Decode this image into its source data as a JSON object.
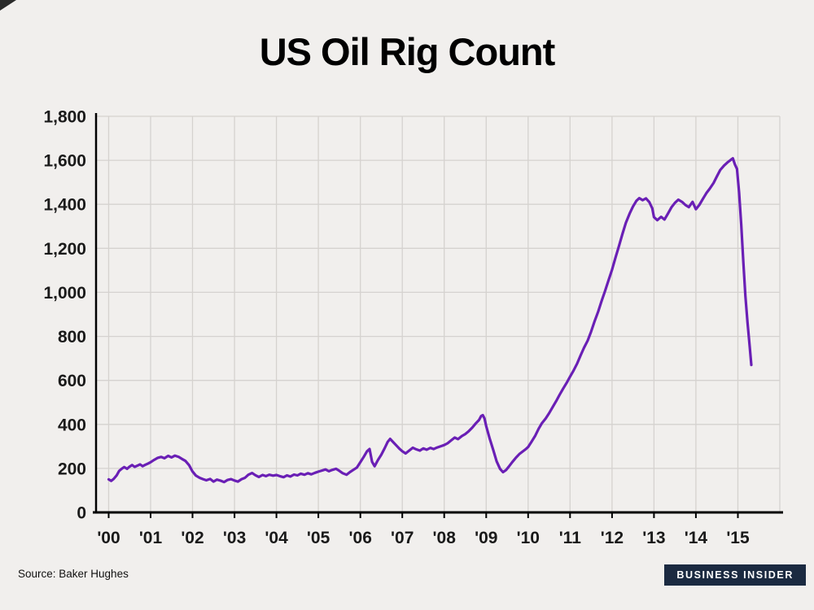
{
  "title": "US Oil Rig Count",
  "footer": {
    "source": "Source: Baker Hughes",
    "badge": "BUSINESS INSIDER"
  },
  "colors": {
    "background": "#f1efed",
    "grid": "#d5d2cf",
    "axis": "#000000",
    "line": "#6a1fb5",
    "tick_text": "#1a1a1a",
    "badge_bg": "#1b2a41"
  },
  "chart_data": {
    "type": "line",
    "title": "US Oil Rig Count",
    "xlabel": "",
    "ylabel": "",
    "grid": true,
    "legend": "none",
    "x_range": [
      1999.7,
      2016.0
    ],
    "ylim": [
      0,
      1800
    ],
    "x_tick_years": [
      2000,
      2001,
      2002,
      2003,
      2004,
      2005,
      2006,
      2007,
      2008,
      2009,
      2010,
      2011,
      2012,
      2013,
      2014,
      2015
    ],
    "x_tick_labels": [
      "'00",
      "'01",
      "'02",
      "'03",
      "'04",
      "'05",
      "'06",
      "'07",
      "'08",
      "'09",
      "'10",
      "'11",
      "'12",
      "'13",
      "'14",
      "'15"
    ],
    "grid_years": [
      2000,
      2001,
      2002,
      2003,
      2004,
      2005,
      2006,
      2007,
      2008,
      2009,
      2010,
      2011,
      2012,
      2013,
      2014,
      2015,
      2016
    ],
    "y_ticks": [
      0,
      200,
      400,
      600,
      800,
      1000,
      1200,
      1400,
      1600,
      1800
    ],
    "y_tick_labels": [
      "0",
      "200",
      "400",
      "600",
      "800",
      "1,000",
      "1,200",
      "1,400",
      "1,600",
      "1,800"
    ],
    "series": [
      {
        "name": "US oil rig count",
        "points": [
          [
            2000.0,
            150
          ],
          [
            2000.06,
            143
          ],
          [
            2000.12,
            152
          ],
          [
            2000.19,
            168
          ],
          [
            2000.25,
            188
          ],
          [
            2000.31,
            198
          ],
          [
            2000.37,
            206
          ],
          [
            2000.44,
            198
          ],
          [
            2000.5,
            208
          ],
          [
            2000.56,
            215
          ],
          [
            2000.62,
            207
          ],
          [
            2000.69,
            213
          ],
          [
            2000.75,
            218
          ],
          [
            2000.81,
            210
          ],
          [
            2000.87,
            216
          ],
          [
            2000.94,
            222
          ],
          [
            2001.0,
            228
          ],
          [
            2001.08,
            238
          ],
          [
            2001.17,
            248
          ],
          [
            2001.25,
            252
          ],
          [
            2001.33,
            246
          ],
          [
            2001.42,
            257
          ],
          [
            2001.5,
            250
          ],
          [
            2001.58,
            258
          ],
          [
            2001.67,
            252
          ],
          [
            2001.75,
            243
          ],
          [
            2001.83,
            234
          ],
          [
            2001.92,
            214
          ],
          [
            2002.0,
            186
          ],
          [
            2002.08,
            167
          ],
          [
            2002.17,
            157
          ],
          [
            2002.25,
            151
          ],
          [
            2002.33,
            146
          ],
          [
            2002.42,
            152
          ],
          [
            2002.5,
            140
          ],
          [
            2002.58,
            149
          ],
          [
            2002.67,
            144
          ],
          [
            2002.75,
            138
          ],
          [
            2002.83,
            147
          ],
          [
            2002.92,
            151
          ],
          [
            2003.0,
            145
          ],
          [
            2003.08,
            140
          ],
          [
            2003.17,
            151
          ],
          [
            2003.25,
            157
          ],
          [
            2003.33,
            171
          ],
          [
            2003.42,
            179
          ],
          [
            2003.5,
            169
          ],
          [
            2003.58,
            161
          ],
          [
            2003.67,
            170
          ],
          [
            2003.75,
            165
          ],
          [
            2003.83,
            171
          ],
          [
            2003.92,
            167
          ],
          [
            2004.0,
            170
          ],
          [
            2004.08,
            165
          ],
          [
            2004.17,
            160
          ],
          [
            2004.25,
            168
          ],
          [
            2004.33,
            163
          ],
          [
            2004.42,
            172
          ],
          [
            2004.5,
            168
          ],
          [
            2004.58,
            176
          ],
          [
            2004.67,
            171
          ],
          [
            2004.75,
            178
          ],
          [
            2004.83,
            173
          ],
          [
            2004.92,
            180
          ],
          [
            2005.0,
            185
          ],
          [
            2005.08,
            190
          ],
          [
            2005.17,
            195
          ],
          [
            2005.25,
            187
          ],
          [
            2005.33,
            193
          ],
          [
            2005.42,
            198
          ],
          [
            2005.5,
            189
          ],
          [
            2005.58,
            178
          ],
          [
            2005.67,
            171
          ],
          [
            2005.75,
            183
          ],
          [
            2005.83,
            193
          ],
          [
            2005.92,
            204
          ],
          [
            2006.0,
            228
          ],
          [
            2006.08,
            252
          ],
          [
            2006.16,
            278
          ],
          [
            2006.22,
            288
          ],
          [
            2006.28,
            230
          ],
          [
            2006.34,
            210
          ],
          [
            2006.42,
            238
          ],
          [
            2006.5,
            262
          ],
          [
            2006.58,
            292
          ],
          [
            2006.65,
            320
          ],
          [
            2006.71,
            334
          ],
          [
            2006.79,
            318
          ],
          [
            2006.87,
            302
          ],
          [
            2006.94,
            288
          ],
          [
            2007.0,
            278
          ],
          [
            2007.08,
            268
          ],
          [
            2007.17,
            282
          ],
          [
            2007.25,
            294
          ],
          [
            2007.33,
            287
          ],
          [
            2007.42,
            281
          ],
          [
            2007.5,
            291
          ],
          [
            2007.58,
            285
          ],
          [
            2007.67,
            293
          ],
          [
            2007.75,
            288
          ],
          [
            2007.83,
            295
          ],
          [
            2007.92,
            301
          ],
          [
            2008.0,
            306
          ],
          [
            2008.08,
            314
          ],
          [
            2008.17,
            328
          ],
          [
            2008.25,
            340
          ],
          [
            2008.33,
            333
          ],
          [
            2008.42,
            347
          ],
          [
            2008.5,
            356
          ],
          [
            2008.58,
            368
          ],
          [
            2008.67,
            386
          ],
          [
            2008.75,
            404
          ],
          [
            2008.83,
            420
          ],
          [
            2008.88,
            438
          ],
          [
            2008.92,
            442
          ],
          [
            2008.96,
            427
          ],
          [
            2009.0,
            392
          ],
          [
            2009.08,
            338
          ],
          [
            2009.17,
            283
          ],
          [
            2009.25,
            232
          ],
          [
            2009.33,
            198
          ],
          [
            2009.4,
            183
          ],
          [
            2009.47,
            192
          ],
          [
            2009.54,
            208
          ],
          [
            2009.62,
            228
          ],
          [
            2009.71,
            249
          ],
          [
            2009.79,
            265
          ],
          [
            2009.87,
            277
          ],
          [
            2009.94,
            287
          ],
          [
            2010.0,
            297
          ],
          [
            2010.08,
            321
          ],
          [
            2010.17,
            349
          ],
          [
            2010.25,
            380
          ],
          [
            2010.33,
            406
          ],
          [
            2010.42,
            427
          ],
          [
            2010.5,
            451
          ],
          [
            2010.58,
            477
          ],
          [
            2010.67,
            506
          ],
          [
            2010.75,
            534
          ],
          [
            2010.83,
            561
          ],
          [
            2010.92,
            589
          ],
          [
            2011.0,
            617
          ],
          [
            2011.08,
            644
          ],
          [
            2011.17,
            677
          ],
          [
            2011.25,
            713
          ],
          [
            2011.33,
            747
          ],
          [
            2011.42,
            781
          ],
          [
            2011.5,
            821
          ],
          [
            2011.58,
            866
          ],
          [
            2011.67,
            913
          ],
          [
            2011.75,
            960
          ],
          [
            2011.83,
            1004
          ],
          [
            2011.92,
            1056
          ],
          [
            2012.0,
            1103
          ],
          [
            2012.08,
            1156
          ],
          [
            2012.17,
            1213
          ],
          [
            2012.25,
            1266
          ],
          [
            2012.33,
            1316
          ],
          [
            2012.42,
            1358
          ],
          [
            2012.5,
            1390
          ],
          [
            2012.58,
            1416
          ],
          [
            2012.65,
            1428
          ],
          [
            2012.73,
            1419
          ],
          [
            2012.81,
            1427
          ],
          [
            2012.89,
            1410
          ],
          [
            2012.96,
            1382
          ],
          [
            2013.0,
            1342
          ],
          [
            2013.08,
            1328
          ],
          [
            2013.17,
            1343
          ],
          [
            2013.25,
            1331
          ],
          [
            2013.33,
            1357
          ],
          [
            2013.42,
            1387
          ],
          [
            2013.5,
            1407
          ],
          [
            2013.58,
            1421
          ],
          [
            2013.67,
            1411
          ],
          [
            2013.75,
            1397
          ],
          [
            2013.83,
            1387
          ],
          [
            2013.92,
            1411
          ],
          [
            2014.0,
            1378
          ],
          [
            2014.08,
            1397
          ],
          [
            2014.17,
            1426
          ],
          [
            2014.25,
            1451
          ],
          [
            2014.33,
            1471
          ],
          [
            2014.42,
            1497
          ],
          [
            2014.5,
            1527
          ],
          [
            2014.58,
            1556
          ],
          [
            2014.67,
            1576
          ],
          [
            2014.75,
            1590
          ],
          [
            2014.83,
            1602
          ],
          [
            2014.88,
            1609
          ],
          [
            2014.93,
            1581
          ],
          [
            2014.98,
            1561
          ],
          [
            2015.03,
            1453
          ],
          [
            2015.08,
            1308
          ],
          [
            2015.13,
            1137
          ],
          [
            2015.18,
            984
          ],
          [
            2015.23,
            864
          ],
          [
            2015.28,
            758
          ],
          [
            2015.32,
            670
          ]
        ]
      }
    ]
  }
}
